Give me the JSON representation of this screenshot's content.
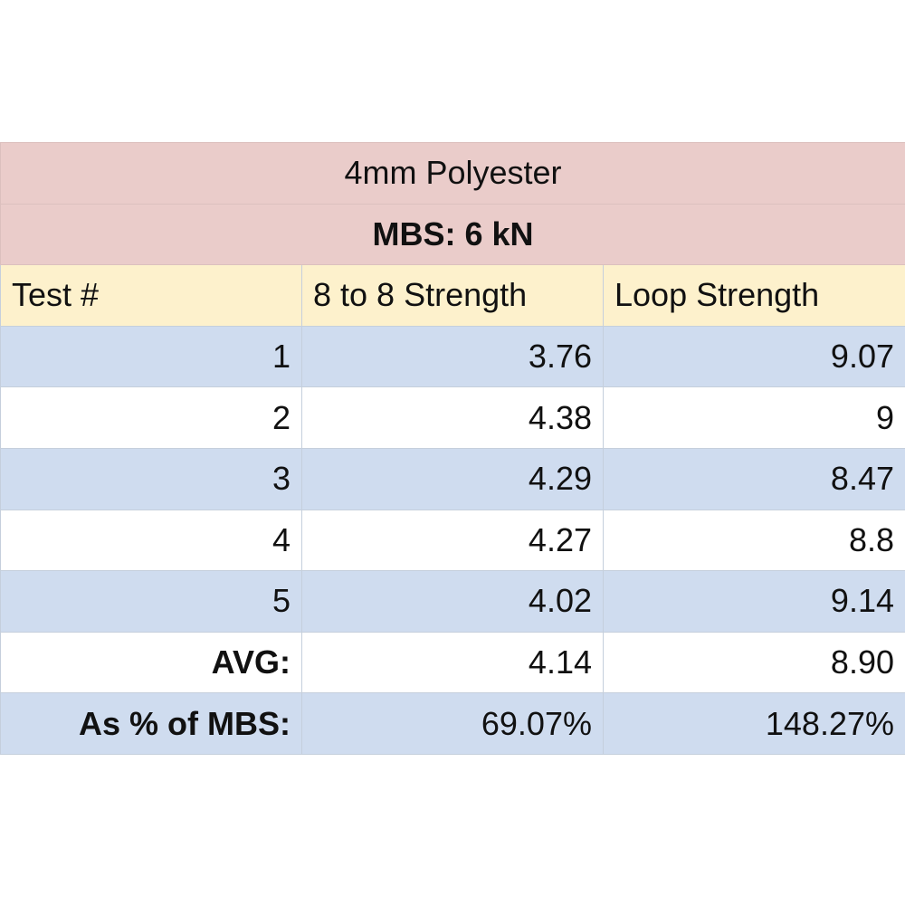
{
  "table": {
    "title": "4mm Polyester",
    "subtitle": "MBS: 6 kN",
    "header": [
      "Test #",
      "8 to 8 Strength",
      "Loop Strength"
    ],
    "rows": [
      [
        "1",
        "3.76",
        "9.07"
      ],
      [
        "2",
        "4.38",
        "9"
      ],
      [
        "3",
        "4.29",
        "8.47"
      ],
      [
        "4",
        "4.27",
        "8.8"
      ],
      [
        "5",
        "4.02",
        "9.14"
      ]
    ],
    "summary": [
      [
        "AVG:",
        "4.14",
        "8.90"
      ],
      [
        "As % of MBS:",
        "69.07%",
        "148.27%"
      ]
    ]
  }
}
